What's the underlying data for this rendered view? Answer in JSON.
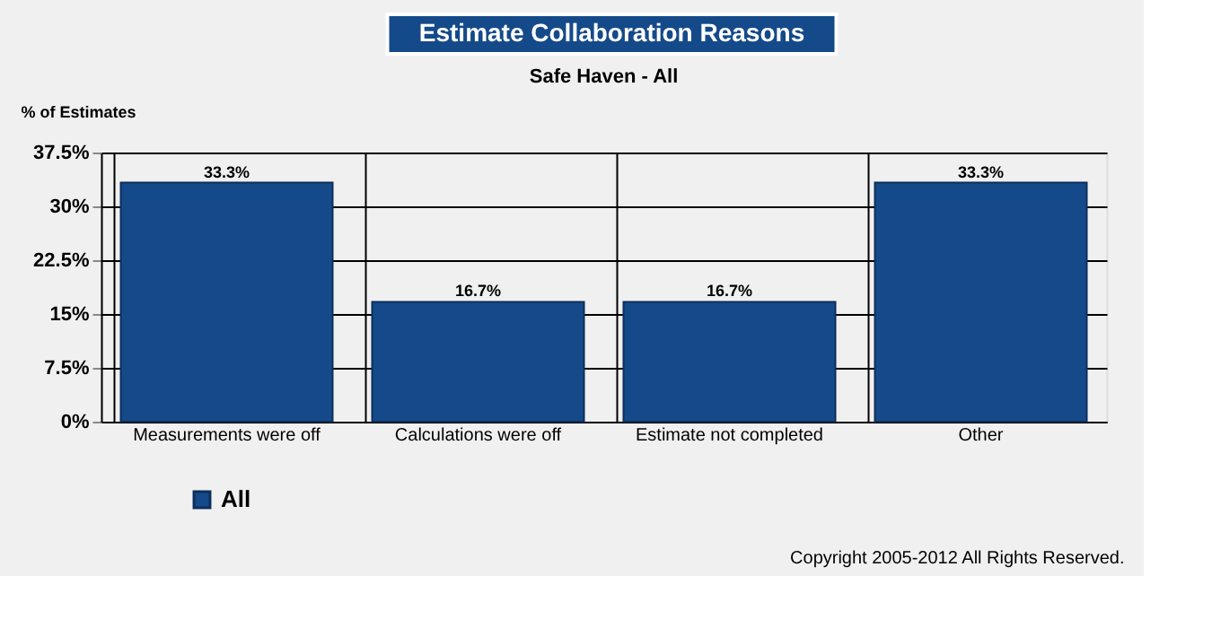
{
  "chart_data": {
    "type": "bar",
    "title": "Estimate Collaboration Reasons",
    "subtitle": "Safe Haven - All",
    "ylabel": "% of Estimates",
    "categories": [
      "Measurements were off",
      "Calculations were off",
      "Estimate not completed",
      "Other"
    ],
    "series": [
      {
        "name": "All",
        "color": "#154a8a",
        "values": [
          33.3,
          16.7,
          16.7,
          33.3
        ]
      }
    ],
    "value_labels": [
      "33.3%",
      "16.7%",
      "16.7%",
      "33.3%"
    ],
    "ylim": [
      0,
      37.5
    ],
    "yticks": [
      {
        "value": 0,
        "label": "0%"
      },
      {
        "value": 7.5,
        "label": "7.5%"
      },
      {
        "value": 15,
        "label": "15%"
      },
      {
        "value": 22.5,
        "label": "22.5%"
      },
      {
        "value": 30,
        "label": "30%"
      },
      {
        "value": 37.5,
        "label": "37.5%"
      }
    ],
    "grid": true,
    "legend": "bottom left",
    "annotations": [
      "Copyright 2005-2012 All Rights Reserved."
    ]
  }
}
